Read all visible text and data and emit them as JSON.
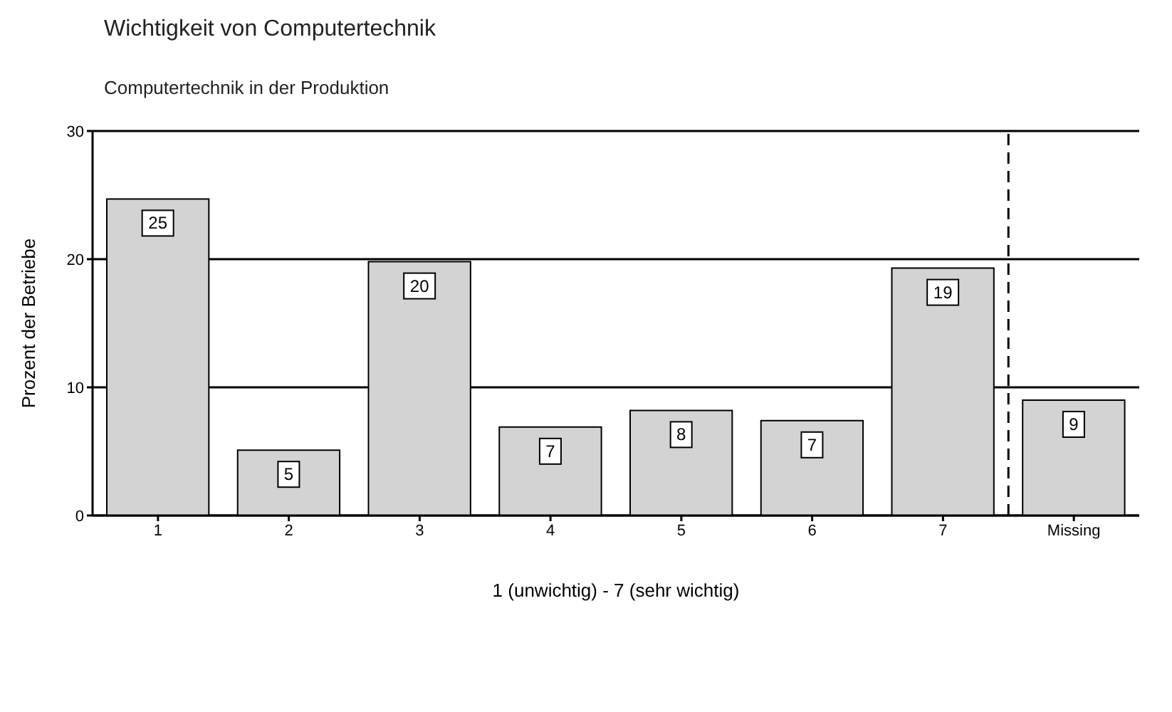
{
  "chart_data": {
    "type": "bar",
    "title": "Wichtigkeit von Computertechnik",
    "subtitle": "Computertechnik in der Produktion",
    "xlabel": "1 (unwichtig)  -  7 (sehr wichtig)",
    "ylabel": "Prozent der Betriebe",
    "categories": [
      "1",
      "2",
      "3",
      "4",
      "5",
      "6",
      "7",
      "Missing"
    ],
    "values": [
      24.7,
      5.1,
      19.8,
      6.9,
      8.2,
      7.4,
      19.3,
      9.0
    ],
    "value_labels": [
      "25",
      "5",
      "20",
      "7",
      "8",
      "7",
      "19",
      "9"
    ],
    "color": "#d3d3d3",
    "ylim": [
      0,
      30
    ],
    "yticks": [
      0,
      10,
      20,
      30
    ],
    "grid": "y",
    "ref_lines": [
      {
        "axis": "x",
        "value": "Missing",
        "line_style": "dashed",
        "color": "#000000"
      }
    ]
  }
}
